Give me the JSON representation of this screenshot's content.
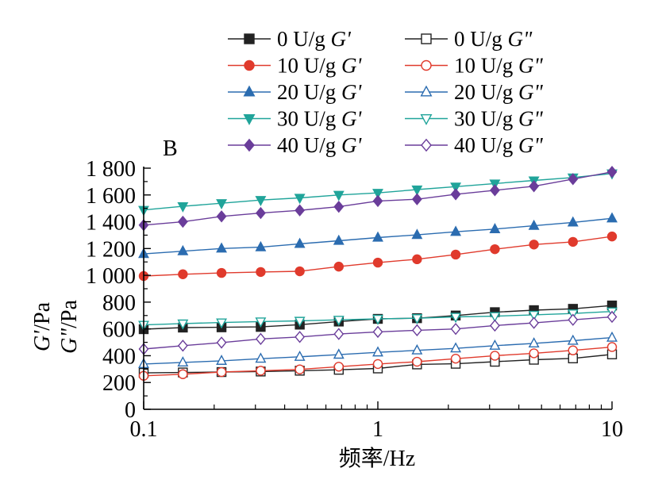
{
  "chart_data": {
    "type": "line",
    "panel_label": "B",
    "xlabel": "频率/Hz",
    "ylabel_lines": [
      "G'/Pa",
      "G\"/Pa"
    ],
    "xscale": "log",
    "xlim": [
      0.1,
      10
    ],
    "ylim": [
      0,
      1800
    ],
    "xticks": [
      {
        "value": 0.1,
        "label": "0.1"
      },
      {
        "value": 1,
        "label": "1"
      },
      {
        "value": 10,
        "label": "10"
      }
    ],
    "yticks": [
      {
        "value": 0,
        "label": "0"
      },
      {
        "value": 200,
        "label": "200"
      },
      {
        "value": 400,
        "label": "400"
      },
      {
        "value": 600,
        "label": "600"
      },
      {
        "value": 800,
        "label": "800"
      },
      {
        "value": 1000,
        "label": "1 000"
      },
      {
        "value": 1200,
        "label": "1 200"
      },
      {
        "value": 1400,
        "label": "1 400"
      },
      {
        "value": 1600,
        "label": "1 600"
      },
      {
        "value": 1800,
        "label": "1 800"
      }
    ],
    "grid": false,
    "legend_position": "top",
    "x": [
      0.1,
      0.147,
      0.215,
      0.316,
      0.464,
      0.681,
      1.0,
      1.47,
      2.15,
      3.16,
      4.64,
      6.81,
      10.0
    ],
    "series": [
      {
        "name": "0 U/g G'",
        "label_text": "0 U/g ",
        "label_symbol": "G'",
        "color": "#222222",
        "marker": "square",
        "filled": true,
        "values": [
          598,
          610,
          612,
          615,
          632,
          655,
          675,
          680,
          700,
          725,
          740,
          750,
          775
        ]
      },
      {
        "name": "0 U/g G\"",
        "label_text": "0 U/g ",
        "label_symbol": "G\"",
        "color": "#222222",
        "marker": "square",
        "filled": false,
        "values": [
          272,
          275,
          278,
          282,
          288,
          295,
          305,
          335,
          340,
          355,
          370,
          380,
          410
        ]
      },
      {
        "name": "10 U/g G'",
        "label_text": "10 U/g ",
        "label_symbol": "G'",
        "color": "#e03a2c",
        "marker": "circle",
        "filled": true,
        "values": [
          995,
          1008,
          1018,
          1025,
          1030,
          1065,
          1095,
          1120,
          1155,
          1195,
          1230,
          1250,
          1290
        ]
      },
      {
        "name": "10 U/g G\"",
        "label_text": "10 U/g ",
        "label_symbol": "G\"",
        "color": "#e03a2c",
        "marker": "circle",
        "filled": false,
        "values": [
          250,
          262,
          278,
          288,
          298,
          318,
          338,
          355,
          378,
          400,
          418,
          440,
          465
        ]
      },
      {
        "name": "20 U/g G'",
        "label_text": "20 U/g ",
        "label_symbol": "G'",
        "color": "#2b6cb0",
        "marker": "triangle-up",
        "filled": true,
        "values": [
          1160,
          1180,
          1200,
          1210,
          1235,
          1258,
          1282,
          1302,
          1325,
          1345,
          1370,
          1395,
          1425
        ]
      },
      {
        "name": "20 U/g G\"",
        "label_text": "20 U/g ",
        "label_symbol": "G\"",
        "color": "#2b6cb0",
        "marker": "triangle-up",
        "filled": false,
        "values": [
          338,
          350,
          362,
          378,
          392,
          408,
          425,
          440,
          455,
          475,
          492,
          512,
          535
        ]
      },
      {
        "name": "30 U/g G'",
        "label_text": "30 U/g ",
        "label_symbol": "G'",
        "color": "#20a49a",
        "marker": "triangle-down",
        "filled": true,
        "values": [
          1488,
          1515,
          1538,
          1562,
          1578,
          1600,
          1615,
          1640,
          1662,
          1685,
          1708,
          1730,
          1760
        ]
      },
      {
        "name": "30 U/g G\"",
        "label_text": "30 U/g ",
        "label_symbol": "G\"",
        "color": "#20a49a",
        "marker": "triangle-down",
        "filled": false,
        "values": [
          630,
          640,
          648,
          655,
          660,
          668,
          675,
          680,
          690,
          695,
          705,
          715,
          730
        ]
      },
      {
        "name": "40 U/g G'",
        "label_text": "40 U/g ",
        "label_symbol": "G'",
        "color": "#6a3d9a",
        "marker": "diamond",
        "filled": true,
        "values": [
          1375,
          1400,
          1440,
          1465,
          1485,
          1512,
          1555,
          1568,
          1605,
          1635,
          1665,
          1718,
          1772
        ]
      },
      {
        "name": "40 U/g G\"",
        "label_text": "40 U/g ",
        "label_symbol": "G\"",
        "color": "#6a3d9a",
        "marker": "diamond",
        "filled": false,
        "values": [
          450,
          475,
          498,
          525,
          540,
          562,
          578,
          590,
          600,
          625,
          645,
          668,
          690
        ]
      }
    ]
  }
}
